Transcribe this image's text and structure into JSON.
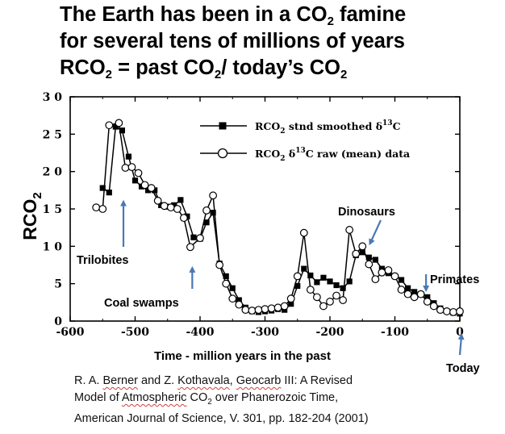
{
  "title": {
    "line1_before": "The Earth has been in a CO",
    "line1_sub": "2",
    "line1_after": " famine",
    "line2": "for several tens of millions of years",
    "line3_a": "RCO",
    "line3_sub1": "2",
    "line3_b": " = past CO",
    "line3_sub2": "2",
    "line3_c": "/ today’s CO",
    "line3_sub3": "2"
  },
  "citation": {
    "author1": "R. A. ",
    "author1_name": "Berner",
    "and": " and Z. ",
    "author2_name": "Kothavala",
    "comma": ", ",
    "model_name": "Geocarb",
    "line1_rest": " III: A Revised",
    "line2_a": "Model of ",
    "line2_atm": "Atmospheric",
    "line2_b": " CO",
    "line2_sub": "2",
    "line2_c": " over Phanerozoic Time,",
    "line3": "American Journal of Science, V. 301, pp. 182-204 (2001)"
  },
  "chart_data": {
    "type": "line",
    "xlabel": "Time - million years in the past",
    "ylabel": "RCO",
    "ylabel_sub": "2",
    "xlim": [
      -600,
      0
    ],
    "ylim": [
      0,
      30
    ],
    "x_ticks": [
      -600,
      -500,
      -400,
      -300,
      -200,
      -100,
      0
    ],
    "x_tick_labels": [
      "-600",
      "-500",
      "-400",
      "-300",
      "-200",
      "-100",
      "0"
    ],
    "y_ticks": [
      0,
      5,
      10,
      15,
      20,
      25,
      30
    ],
    "y_tick_labels": [
      "0",
      "5",
      "1 0",
      "1 5",
      "2 0",
      "2 5",
      "3 0"
    ],
    "legend_position": "top-right",
    "series": [
      {
        "name": "RCO₂ stnd smoothed δ¹³C",
        "legend_label": "RCO",
        "legend_sub": "2",
        "legend_after": " stnd smoothed δ",
        "legend_sup": "13",
        "legend_end": "C",
        "marker": "filled-square",
        "x": [
          -550,
          -540,
          -530,
          -520,
          -510,
          -500,
          -490,
          -480,
          -470,
          -460,
          -450,
          -440,
          -430,
          -420,
          -410,
          -400,
          -390,
          -380,
          -370,
          -360,
          -350,
          -340,
          -330,
          -320,
          -310,
          -300,
          -290,
          -280,
          -270,
          -260,
          -250,
          -240,
          -230,
          -220,
          -210,
          -200,
          -190,
          -180,
          -170,
          -160,
          -150,
          -140,
          -130,
          -120,
          -110,
          -100,
          -90,
          -80,
          -70,
          -60,
          -50,
          -40,
          -30,
          -20,
          -10,
          0
        ],
        "y": [
          17.8,
          17.2,
          26.0,
          25.5,
          22.0,
          18.8,
          18.0,
          17.5,
          17.5,
          15.5,
          15.3,
          15.5,
          16.2,
          14.0,
          11.2,
          11.0,
          13.2,
          14.5,
          7.7,
          6.0,
          4.4,
          2.8,
          1.8,
          1.3,
          1.2,
          1.3,
          1.4,
          1.6,
          1.5,
          2.3,
          4.7,
          7.0,
          6.1,
          5.2,
          5.8,
          5.3,
          4.8,
          4.4,
          5.3,
          8.8,
          9.2,
          8.5,
          8.2,
          7.0,
          6.4,
          6.0,
          5.5,
          4.4,
          3.9,
          3.6,
          3.2,
          2.4,
          1.7,
          1.3,
          1.1,
          1.0
        ]
      },
      {
        "name": "RCO₂ δ¹³C raw (mean) data",
        "legend_label": "RCO",
        "legend_sub": "2",
        "legend_after": " δ",
        "legend_sup": "13",
        "legend_end": "C raw (mean) data",
        "marker": "open-circle",
        "x": [
          -560,
          -550,
          -540,
          -525,
          -515,
          -505,
          -495,
          -485,
          -475,
          -465,
          -455,
          -445,
          -435,
          -425,
          -415,
          -400,
          -390,
          -380,
          -370,
          -360,
          -350,
          -340,
          -330,
          -320,
          -310,
          -300,
          -290,
          -280,
          -270,
          -260,
          -250,
          -240,
          -230,
          -220,
          -210,
          -200,
          -190,
          -180,
          -170,
          -160,
          -150,
          -140,
          -130,
          -120,
          -110,
          -100,
          -90,
          -80,
          -70,
          -60,
          -50,
          -40,
          -30,
          -20,
          -10,
          0
        ],
        "y": [
          15.2,
          15.0,
          26.2,
          26.5,
          20.5,
          20.6,
          19.8,
          18.2,
          17.8,
          16.1,
          15.4,
          15.2,
          15.0,
          13.8,
          9.9,
          11.1,
          14.8,
          16.8,
          7.5,
          5.0,
          3.0,
          2.2,
          1.5,
          1.4,
          1.5,
          1.6,
          1.7,
          1.8,
          2.0,
          3.0,
          6.0,
          11.8,
          4.2,
          3.2,
          2.0,
          2.6,
          3.4,
          2.8,
          12.2,
          9.0,
          10.0,
          7.6,
          5.6,
          6.5,
          6.8,
          6.0,
          4.2,
          3.6,
          3.2,
          3.6,
          2.6,
          2.0,
          1.5,
          1.3,
          1.2,
          1.3
        ]
      }
    ],
    "annotations": [
      {
        "text": "Trilobites",
        "x": -518,
        "y": 16.0
      },
      {
        "text": "Coal swamps",
        "x": -412,
        "y": 8.0
      },
      {
        "text": "Dinosaurs",
        "x": -140,
        "y": 10.3
      },
      {
        "text": "Primates",
        "x": -52,
        "y": 4.1
      },
      {
        "text": "Today",
        "x": 0,
        "y": -2.2
      }
    ]
  }
}
